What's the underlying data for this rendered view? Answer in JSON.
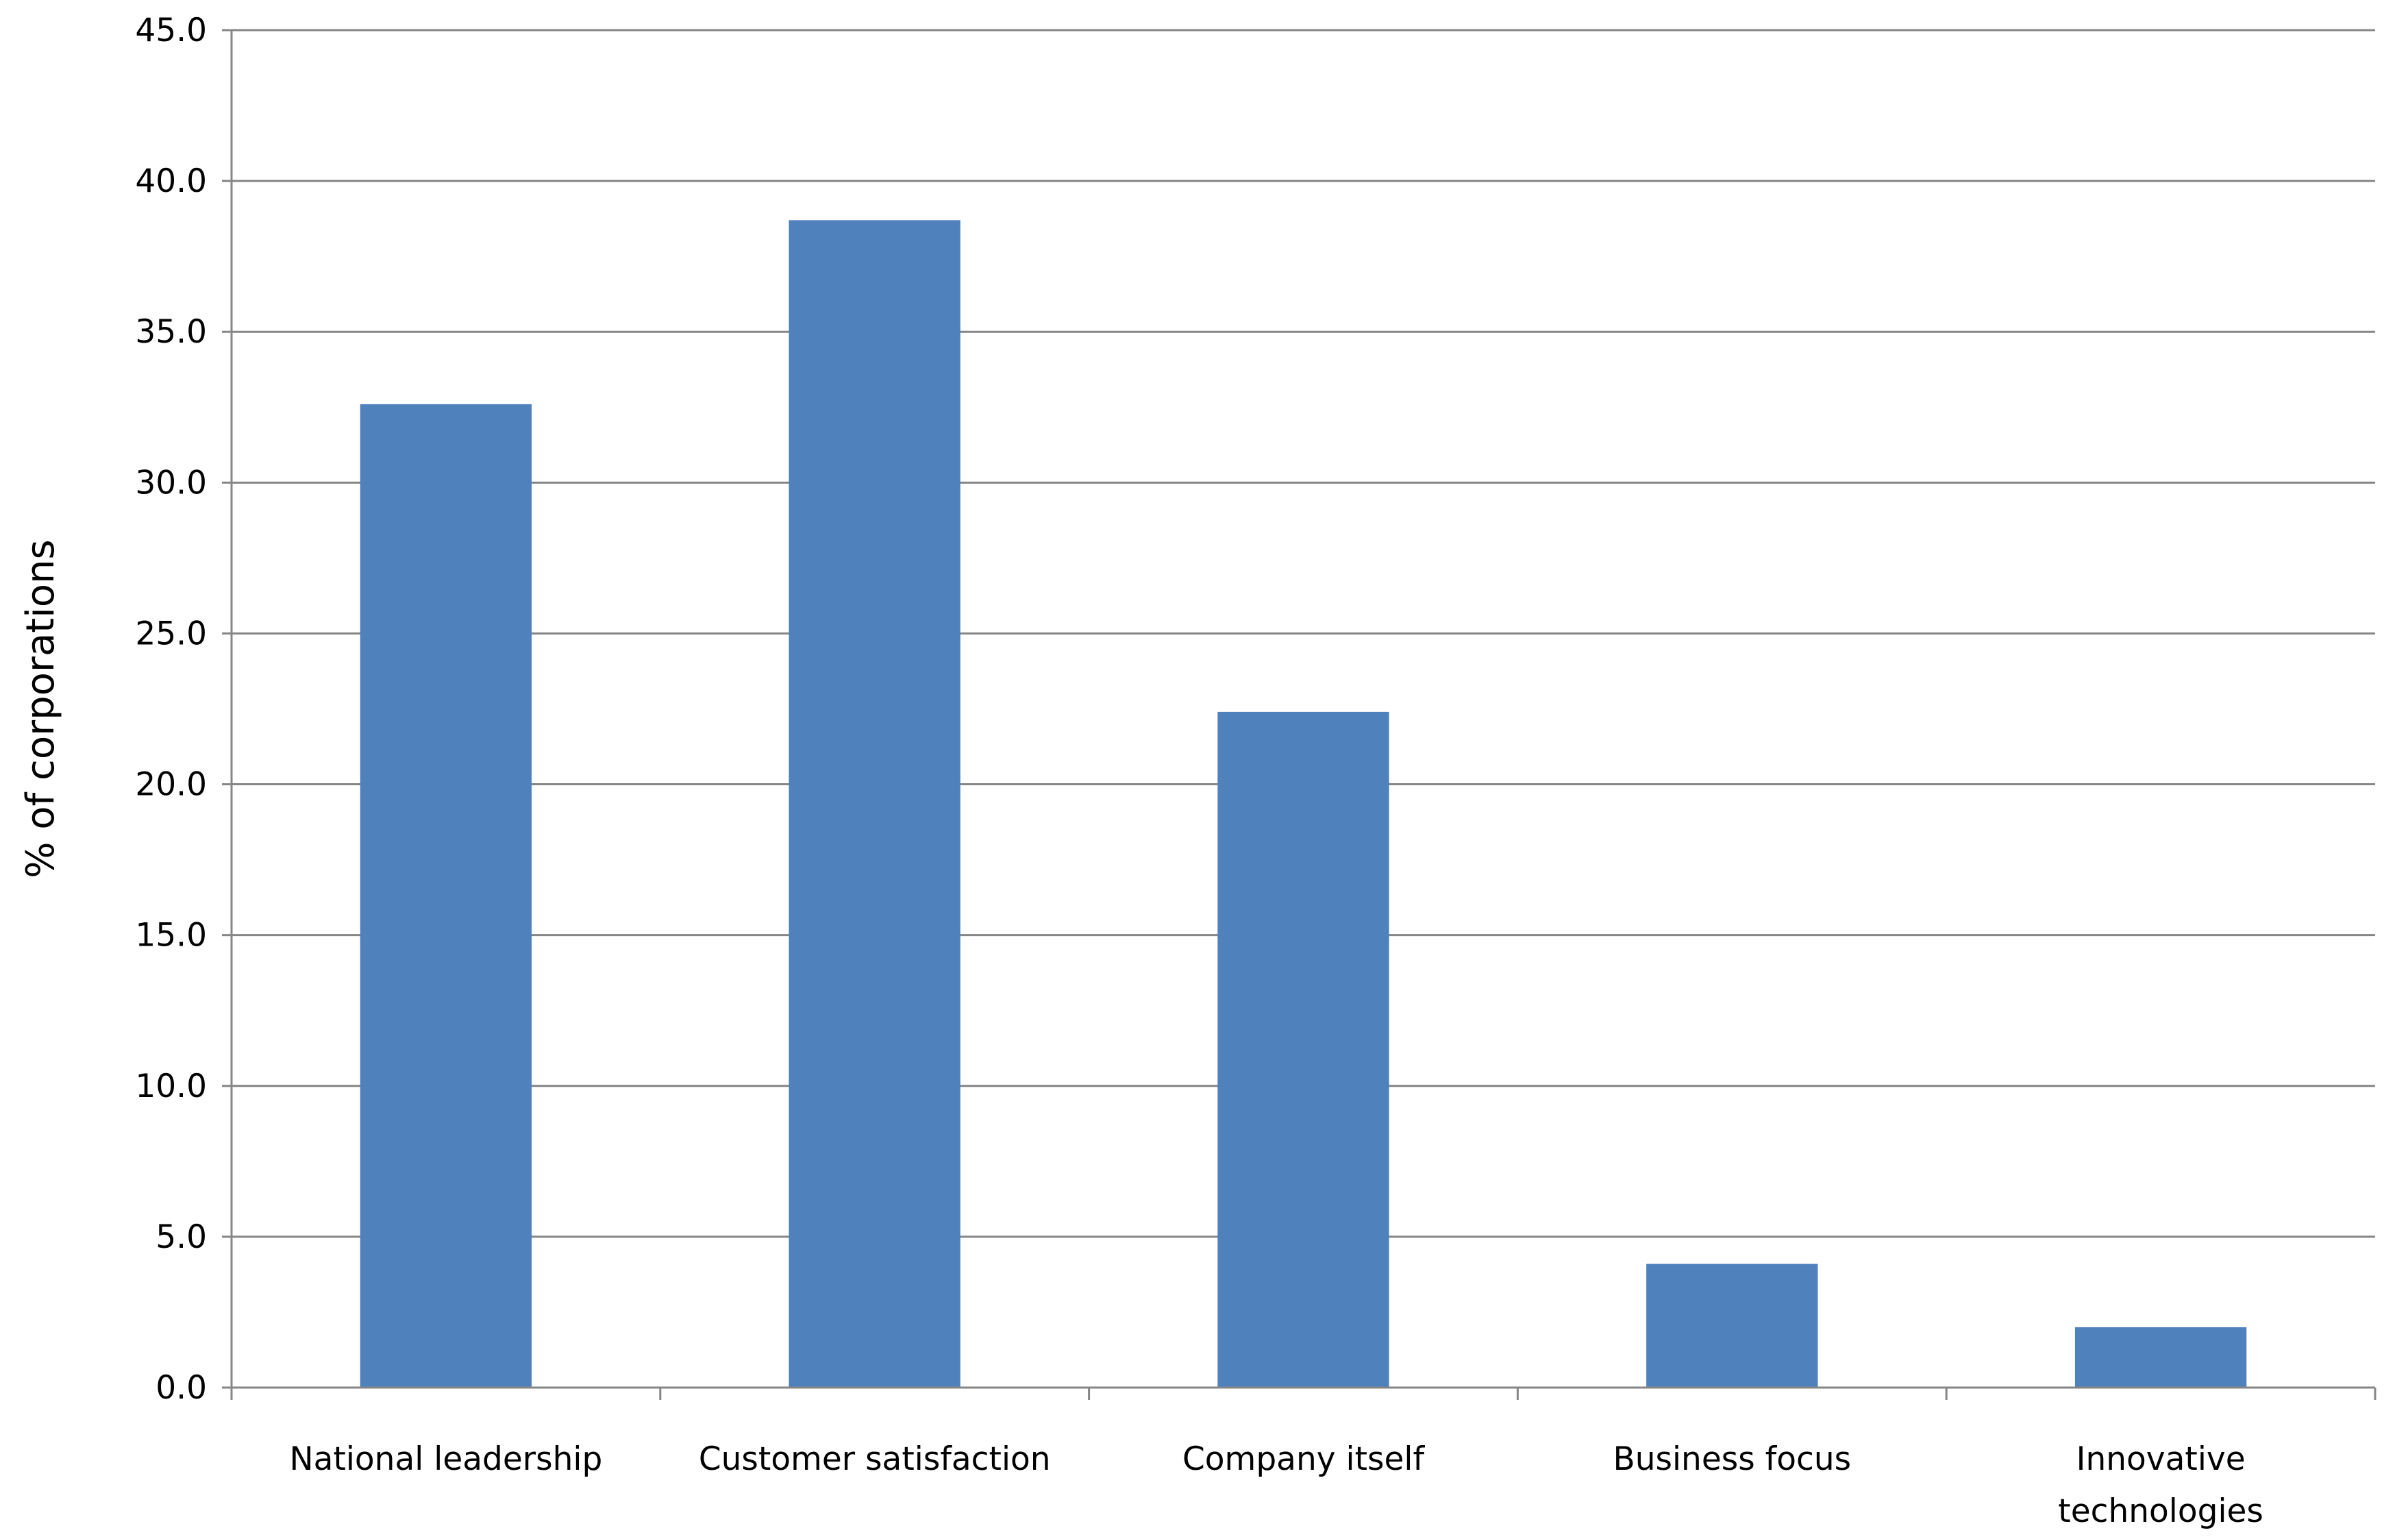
{
  "chart_data": {
    "type": "bar",
    "title": "",
    "xlabel": "",
    "ylabel": "% of corporations",
    "ylim": [
      0,
      45
    ],
    "ytick_step": 5,
    "ytick_labels": [
      "0.0",
      "5.0",
      "10.0",
      "15.0",
      "20.0",
      "25.0",
      "30.0",
      "35.0",
      "40.0",
      "45.0"
    ],
    "categories": [
      [
        "National leadership"
      ],
      [
        "Customer satisfaction"
      ],
      [
        "Company itself"
      ],
      [
        "Business focus"
      ],
      [
        "Innovative",
        "technologies"
      ]
    ],
    "series": [
      {
        "values": [
          32.6,
          38.7,
          22.4,
          4.1,
          2.0
        ]
      }
    ],
    "grid": true,
    "legend": "none",
    "colors": {
      "bar": "#4f81bd",
      "gridline": "#868686",
      "axis": "#868686",
      "text": "#000000"
    }
  }
}
